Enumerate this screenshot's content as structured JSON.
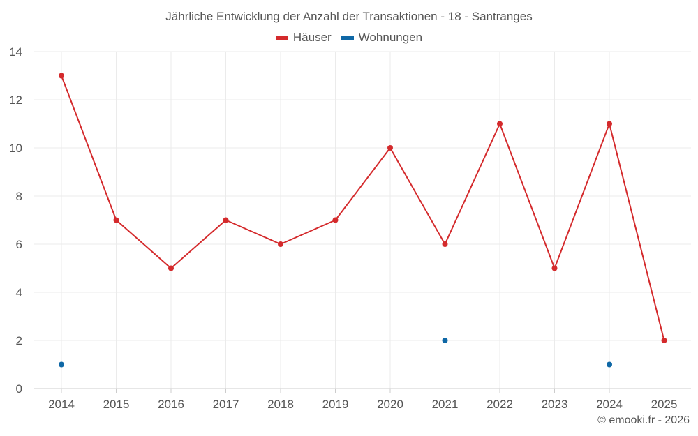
{
  "chart_data": {
    "type": "line",
    "title": "Jährliche Entwicklung der Anzahl der Transaktionen - 18 - Santranges",
    "categories": [
      "2014",
      "2015",
      "2016",
      "2017",
      "2018",
      "2019",
      "2020",
      "2021",
      "2022",
      "2023",
      "2024",
      "2025"
    ],
    "series": [
      {
        "name": "Häuser",
        "color": "#d42a2c",
        "values": [
          13,
          7,
          5,
          7,
          6,
          7,
          10,
          6,
          11,
          5,
          11,
          2
        ]
      },
      {
        "name": "Wohnungen",
        "color": "#0f68a6",
        "values": [
          1,
          null,
          null,
          null,
          null,
          null,
          null,
          2,
          null,
          null,
          1,
          null
        ]
      }
    ],
    "xlabel": "",
    "ylabel": "",
    "ylim": [
      0,
      14
    ],
    "yticks": [
      0,
      2,
      4,
      6,
      8,
      10,
      12,
      14
    ],
    "grid": true,
    "legend_position": "top-center"
  },
  "footer": {
    "credit": "© emooki.fr - 2026"
  }
}
